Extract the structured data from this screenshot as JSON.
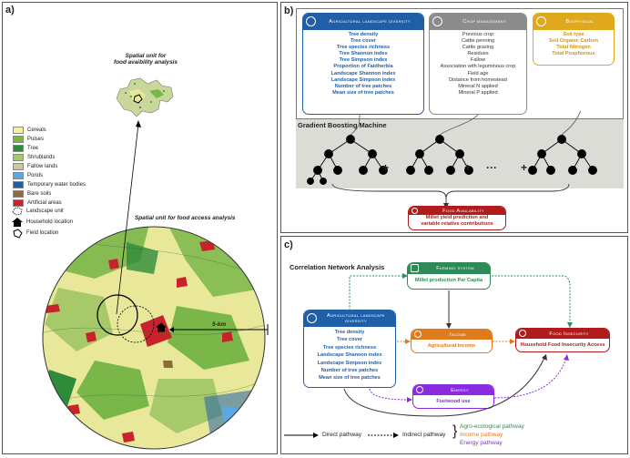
{
  "panel_a": {
    "label": "a)",
    "food_availability_caption": "Spatial unit for\nfood avaibility analysis",
    "food_access_caption": "Spatial unit for food access analysis",
    "scale_label": "5-km",
    "legend": [
      {
        "label": "Cereals",
        "color": "#f3f0a2"
      },
      {
        "label": "Pulses",
        "color": "#7ab648"
      },
      {
        "label": "Tree",
        "color": "#2e8b3a"
      },
      {
        "label": "Shrublands",
        "color": "#a8c96a"
      },
      {
        "label": "Fallow lands",
        "color": "#c7c9a0"
      },
      {
        "label": "Ponds",
        "color": "#5aa9e6"
      },
      {
        "label": "Temporary water bodies",
        "color": "#1f5fa8"
      },
      {
        "label": "Bare soils",
        "color": "#8b6d3c"
      },
      {
        "label": "Artificial areas",
        "color": "#c8232c"
      }
    ],
    "symbols": [
      {
        "label": "Landscape unit",
        "icon": "landscape-unit-icon"
      },
      {
        "label": "Household location",
        "icon": "house-icon"
      },
      {
        "label": "Field location",
        "icon": "field-location-icon"
      }
    ]
  },
  "panel_b": {
    "label": "b)",
    "landscape": {
      "title": "Agricultural landscape diversity",
      "color": "#1f5fa8",
      "items": [
        "Tree density",
        "Tree cover",
        "Tree species richness",
        "Tree Shannon index",
        "Tree Simpson index",
        "Proportion of Faidherbia",
        "Landscape Shannon index",
        "Landscape Simpson index",
        "Number of tree patches",
        "Mean size of tree patches"
      ]
    },
    "crop": {
      "title": "Crop management",
      "color": "#8c8c8c",
      "items": [
        "Previous crop",
        "Cattle penning",
        "Cattle grazing",
        "Residues",
        "Fallow",
        "Association with leguminous crop",
        "Field age",
        "Distance from homestead",
        "Mineral N applied",
        "Mineral P applied"
      ]
    },
    "biophysical": {
      "title": "Biophysical",
      "color": "#e0a81c",
      "items": [
        "Soil type",
        "Soil Organic Carbon",
        "Total Nitrogen",
        "Total Posphorous"
      ]
    },
    "gbm_title": "Gradient Boosting Machine",
    "operators": [
      "+",
      "+",
      "···",
      "+"
    ],
    "food_availability": {
      "title": "Food Availability",
      "color": "#b01c1c",
      "text": "Millet yield prediction and\nvariable relative contributions"
    }
  },
  "panel_c": {
    "label": "c)",
    "title": "Correlation Network Analysis",
    "farming": {
      "title": "Farming system",
      "color": "#2e8b57",
      "text": "Millet production Per Capita"
    },
    "landscape": {
      "title": "Agricultural landscape diversity",
      "color": "#1f5fa8",
      "items": [
        "Tree density",
        "Tree cover",
        "Tree species richness",
        "Landscape Shannon index",
        "Landscape Simpson index",
        "Number of tree patches",
        "Mean size of tree patches"
      ]
    },
    "income": {
      "title": "Income",
      "color": "#e07b1c",
      "text": "Agricultural Income"
    },
    "food_insecurity": {
      "title": "Food Insecurity",
      "color": "#b01c1c",
      "text": "Household Food Insecurity Access"
    },
    "energy": {
      "title": "Energy",
      "color": "#8a2be2",
      "text": "Fuelwood use"
    },
    "legend": {
      "direct": "Direct pathway",
      "indirect": "Indirect pathway",
      "pathways": [
        {
          "label": "Agro-ecological pathway",
          "color": "#2e8b57"
        },
        {
          "label": "Income pathway",
          "color": "#e07b1c"
        },
        {
          "label": "Energy pathway",
          "color": "#8a2be2"
        }
      ]
    }
  }
}
